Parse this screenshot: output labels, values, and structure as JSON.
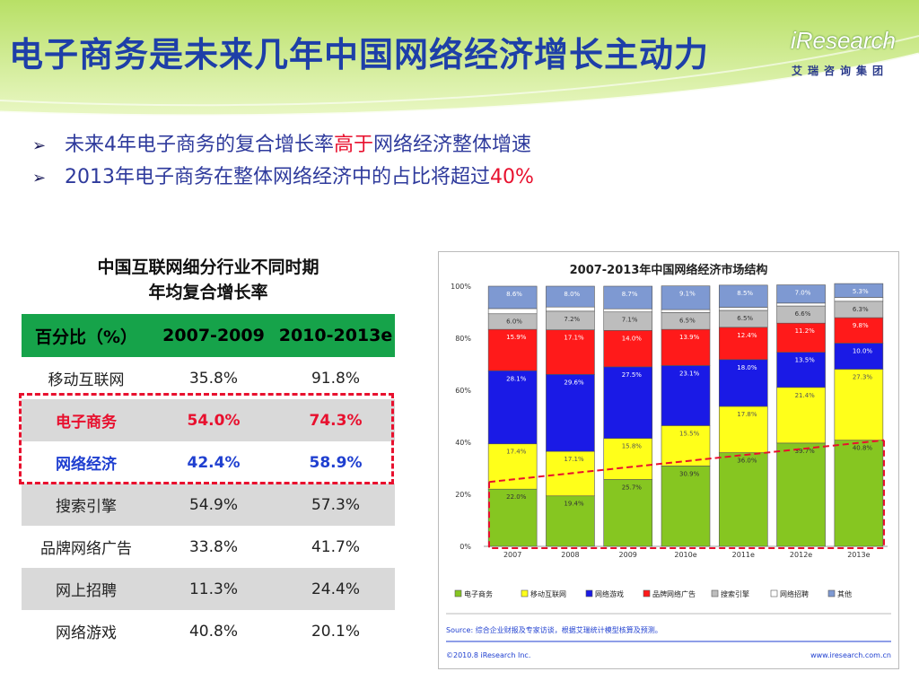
{
  "header": {
    "title": "电子商务是未来几年中国网络经济增长主动力",
    "logo_brand": "iResearch",
    "logo_cn": "艾瑞咨询集团"
  },
  "bullets": [
    {
      "pre": "未来4年电子商务的复合增长率",
      "hl": "高于",
      "post": "网络经济整体增速"
    },
    {
      "pre": "2013年电子商务在整体网络经济中的占比将超过",
      "hl": "40%",
      "post": ""
    }
  ],
  "table": {
    "title_line1": "中国互联网细分行业不同时期",
    "title_line2": "年均复合增长率",
    "headers": [
      "百分比（%）",
      "2007-2009",
      "2010-2013e"
    ],
    "rows": [
      [
        "移动互联网",
        "35.8%",
        "91.8%"
      ],
      [
        "电子商务",
        "54.0%",
        "74.3%"
      ],
      [
        "网络经济",
        "42.4%",
        "58.9%"
      ],
      [
        "搜索引擎",
        "54.9%",
        "57.3%"
      ],
      [
        "品牌网络广告",
        "33.8%",
        "41.7%"
      ],
      [
        "网上招聘",
        "11.3%",
        "24.4%"
      ],
      [
        "网络游戏",
        "40.8%",
        "20.1%"
      ]
    ]
  },
  "chart_data": {
    "type": "bar",
    "stacked": true,
    "title": "2007-2013年中国网络经济市场结构",
    "categories": [
      "2007",
      "2008",
      "2009",
      "2010e",
      "2011e",
      "2012e",
      "2013e"
    ],
    "ylim": [
      0,
      100
    ],
    "yticks": [
      "0%",
      "20%",
      "40%",
      "60%",
      "80%",
      "100%"
    ],
    "series": [
      {
        "name": "电子商务",
        "color": "#86c621",
        "values": [
          22.0,
          19.4,
          25.7,
          30.9,
          36.0,
          39.7,
          40.8
        ]
      },
      {
        "name": "移动互联网",
        "color": "#ffff1a",
        "values": [
          17.4,
          17.1,
          15.8,
          15.5,
          17.8,
          21.4,
          27.3
        ]
      },
      {
        "name": "网络游戏",
        "color": "#1a1ae6",
        "values": [
          28.1,
          29.6,
          27.5,
          23.1,
          18.0,
          13.5,
          10.0
        ]
      },
      {
        "name": "品牌网络广告",
        "color": "#ff1a1a",
        "values": [
          15.9,
          17.1,
          14.0,
          13.9,
          12.4,
          11.2,
          9.8
        ]
      },
      {
        "name": "搜索引擎",
        "color": "#bdbdbd",
        "values": [
          6.0,
          7.2,
          7.1,
          6.5,
          6.5,
          6.6,
          6.3
        ]
      },
      {
        "name": "网络招聘",
        "color": "#ffffff",
        "values": [
          2.0,
          1.6,
          1.2,
          1.1,
          1.2,
          1.1,
          1.5
        ]
      },
      {
        "name": "其他",
        "color": "#7e99d2",
        "values": [
          8.6,
          8.0,
          8.7,
          9.1,
          8.5,
          7.0,
          5.3
        ]
      }
    ],
    "legend": [
      "电子商务",
      "移动互联网",
      "网络游戏",
      "品牌网络广告",
      "搜索引擎",
      "网络招聘",
      "其他"
    ],
    "source": "Source: 综合企业财报及专家访谈，根据艾瑞统计模型核算及预测。",
    "copyright": "©2010.8 iResearch Inc.",
    "website": "www.iresearch.com.cn"
  }
}
